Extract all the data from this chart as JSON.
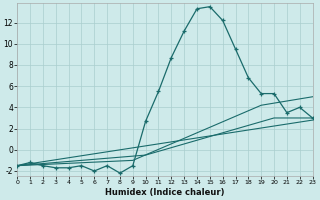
{
  "xlabel": "Humidex (Indice chaleur)",
  "bg_color": "#ceeaea",
  "grid_color": "#aacece",
  "line_color": "#1a6b6b",
  "xlim": [
    0,
    23
  ],
  "ylim": [
    -2.5,
    13.8
  ],
  "xticks": [
    0,
    1,
    2,
    3,
    4,
    5,
    6,
    7,
    8,
    9,
    10,
    11,
    12,
    13,
    14,
    15,
    16,
    17,
    18,
    19,
    20,
    21,
    22,
    23
  ],
  "yticks": [
    -2,
    0,
    2,
    4,
    6,
    8,
    10,
    12
  ],
  "main_x": [
    0,
    1,
    2,
    3,
    4,
    5,
    6,
    7,
    8,
    9,
    10,
    11,
    12,
    13,
    14,
    15,
    16,
    17,
    18,
    19,
    20,
    21,
    22,
    23
  ],
  "main_y": [
    -1.5,
    -1.2,
    -1.5,
    -1.7,
    -1.7,
    -1.5,
    -2.0,
    -1.5,
    -2.2,
    -1.5,
    2.7,
    5.5,
    8.7,
    11.2,
    13.3,
    13.5,
    12.2,
    9.5,
    6.8,
    5.3,
    5.3,
    3.5,
    4.0,
    3.0
  ],
  "line1_x": [
    0,
    23
  ],
  "line1_y": [
    -1.5,
    2.8
  ],
  "line2_x": [
    0,
    9,
    19,
    23
  ],
  "line2_y": [
    -1.5,
    -1.0,
    4.2,
    5.0
  ],
  "line3_x": [
    0,
    10,
    20,
    23
  ],
  "line3_y": [
    -1.5,
    -0.5,
    3.0,
    3.0
  ]
}
